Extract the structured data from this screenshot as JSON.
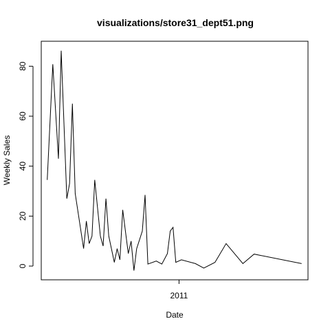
{
  "chart_data": {
    "type": "line",
    "title": "visualizations/store31_dept51.png",
    "xlabel": "Date",
    "ylabel": "Weekly Sales",
    "x_tick_labels": [
      "2011"
    ],
    "y_tick_labels": [
      "0",
      "20",
      "40",
      "60",
      "80"
    ],
    "y_ticks": [
      0,
      20,
      40,
      60,
      80
    ],
    "ylim": [
      -5.5,
      90
    ],
    "xlim": [
      "2010-01-21",
      "2011-11-20"
    ],
    "x_ticks": [
      "2011-01-01"
    ],
    "grid": false,
    "series": [
      {
        "values": [
          [
            "2010-02-05",
            34.5
          ],
          [
            "2010-02-19",
            80.8
          ],
          [
            "2010-03-05",
            43.0
          ],
          [
            "2010-03-12",
            86.2
          ],
          [
            "2010-03-26",
            27.0
          ],
          [
            "2010-04-02",
            33.0
          ],
          [
            "2010-04-09",
            65.0
          ],
          [
            "2010-04-16",
            29.0
          ],
          [
            "2010-05-07",
            7.0
          ],
          [
            "2010-05-14",
            18.0
          ],
          [
            "2010-05-21",
            9.0
          ],
          [
            "2010-05-28",
            12.0
          ],
          [
            "2010-06-04",
            34.5
          ],
          [
            "2010-06-18",
            12.0
          ],
          [
            "2010-06-25",
            8.0
          ],
          [
            "2010-07-02",
            27.0
          ],
          [
            "2010-07-09",
            12.0
          ],
          [
            "2010-07-23",
            1.5
          ],
          [
            "2010-07-30",
            7.0
          ],
          [
            "2010-08-06",
            2.5
          ],
          [
            "2010-08-13",
            22.5
          ],
          [
            "2010-08-27",
            5.0
          ],
          [
            "2010-09-03",
            10.0
          ],
          [
            "2010-09-10",
            -1.8
          ],
          [
            "2010-09-17",
            7.0
          ],
          [
            "2010-10-01",
            14.0
          ],
          [
            "2010-10-08",
            28.5
          ],
          [
            "2010-10-15",
            0.8
          ],
          [
            "2010-11-05",
            2.0
          ],
          [
            "2010-11-19",
            0.8
          ],
          [
            "2010-12-03",
            5.0
          ],
          [
            "2010-12-10",
            14.0
          ],
          [
            "2010-12-17",
            15.5
          ],
          [
            "2010-12-24",
            1.5
          ],
          [
            "2011-01-07",
            2.5
          ],
          [
            "2011-02-11",
            1.0
          ],
          [
            "2011-03-04",
            -0.8
          ],
          [
            "2011-04-01",
            1.5
          ],
          [
            "2011-04-29",
            9.0
          ],
          [
            "2011-06-10",
            1.0
          ],
          [
            "2011-07-08",
            4.8
          ],
          [
            "2011-11-04",
            1.0
          ]
        ]
      }
    ]
  }
}
